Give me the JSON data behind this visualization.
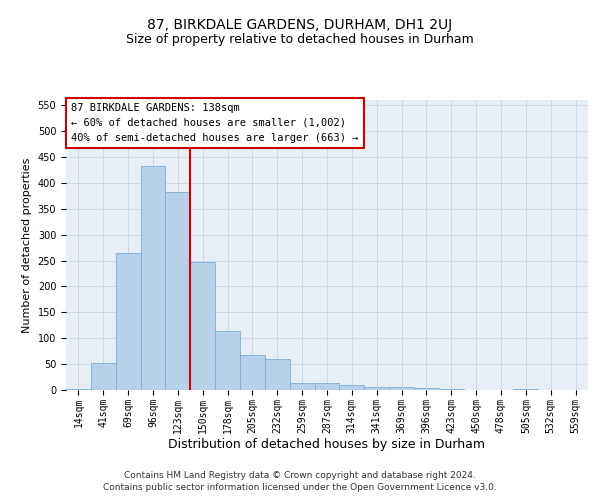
{
  "title": "87, BIRKDALE GARDENS, DURHAM, DH1 2UJ",
  "subtitle": "Size of property relative to detached houses in Durham",
  "xlabel": "Distribution of detached houses by size in Durham",
  "ylabel": "Number of detached properties",
  "categories": [
    "14sqm",
    "41sqm",
    "69sqm",
    "96sqm",
    "123sqm",
    "150sqm",
    "178sqm",
    "205sqm",
    "232sqm",
    "259sqm",
    "287sqm",
    "314sqm",
    "341sqm",
    "369sqm",
    "396sqm",
    "423sqm",
    "450sqm",
    "478sqm",
    "505sqm",
    "532sqm",
    "559sqm"
  ],
  "values": [
    2,
    52,
    265,
    433,
    383,
    248,
    113,
    68,
    60,
    14,
    13,
    9,
    6,
    5,
    3,
    1,
    0,
    0,
    2,
    0,
    0
  ],
  "bar_color": "#b8d0e8",
  "bar_edge_color": "#7aafd4",
  "vline_color": "#cc0000",
  "vline_pos": 4.5,
  "ylim": [
    0,
    560
  ],
  "yticks": [
    0,
    50,
    100,
    150,
    200,
    250,
    300,
    350,
    400,
    450,
    500,
    550
  ],
  "annotation_title": "87 BIRKDALE GARDENS: 138sqm",
  "annotation_line2": "← 60% of detached houses are smaller (1,002)",
  "annotation_line3": "40% of semi-detached houses are larger (663) →",
  "annotation_box_color": "#cc0000",
  "footer_line1": "Contains HM Land Registry data © Crown copyright and database right 2024.",
  "footer_line2": "Contains public sector information licensed under the Open Government Licence v3.0.",
  "bg_color": "#ffffff",
  "plot_bg_color": "#e8eef5",
  "grid_color": "#c8d4e0",
  "title_fontsize": 10,
  "subtitle_fontsize": 9,
  "xlabel_fontsize": 9,
  "ylabel_fontsize": 8,
  "tick_fontsize": 7,
  "annotation_fontsize": 7.5,
  "footer_fontsize": 6.5
}
